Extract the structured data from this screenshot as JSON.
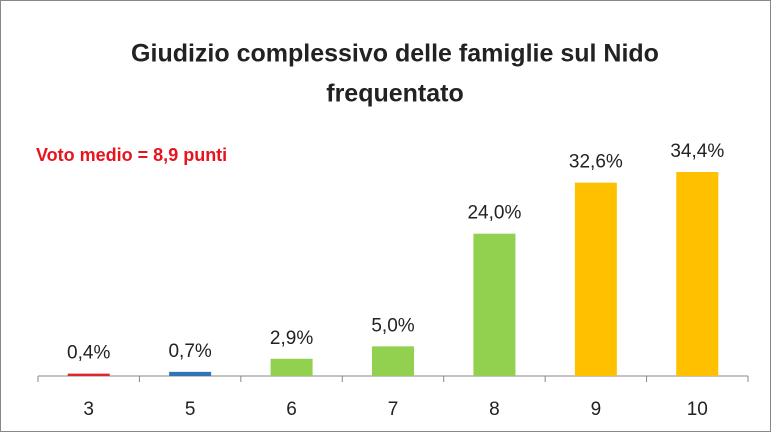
{
  "chart_data": {
    "type": "bar",
    "title": [
      "Giudizio complessivo delle famiglie sul Nido",
      "frequentato"
    ],
    "annotation": "Voto medio = 8,9 punti",
    "categories": [
      "3",
      "5",
      "6",
      "7",
      "8",
      "9",
      "10"
    ],
    "values": [
      0.4,
      0.7,
      2.9,
      5.0,
      24.0,
      32.6,
      34.4
    ],
    "value_labels": [
      "0,4%",
      "0,7%",
      "2,9%",
      "5,0%",
      "24,0%",
      "32,6%",
      "34,4%"
    ],
    "colors": [
      "#e0262b",
      "#2e75b6",
      "#92d050",
      "#92d050",
      "#92d050",
      "#ffc000",
      "#ffc000"
    ]
  }
}
